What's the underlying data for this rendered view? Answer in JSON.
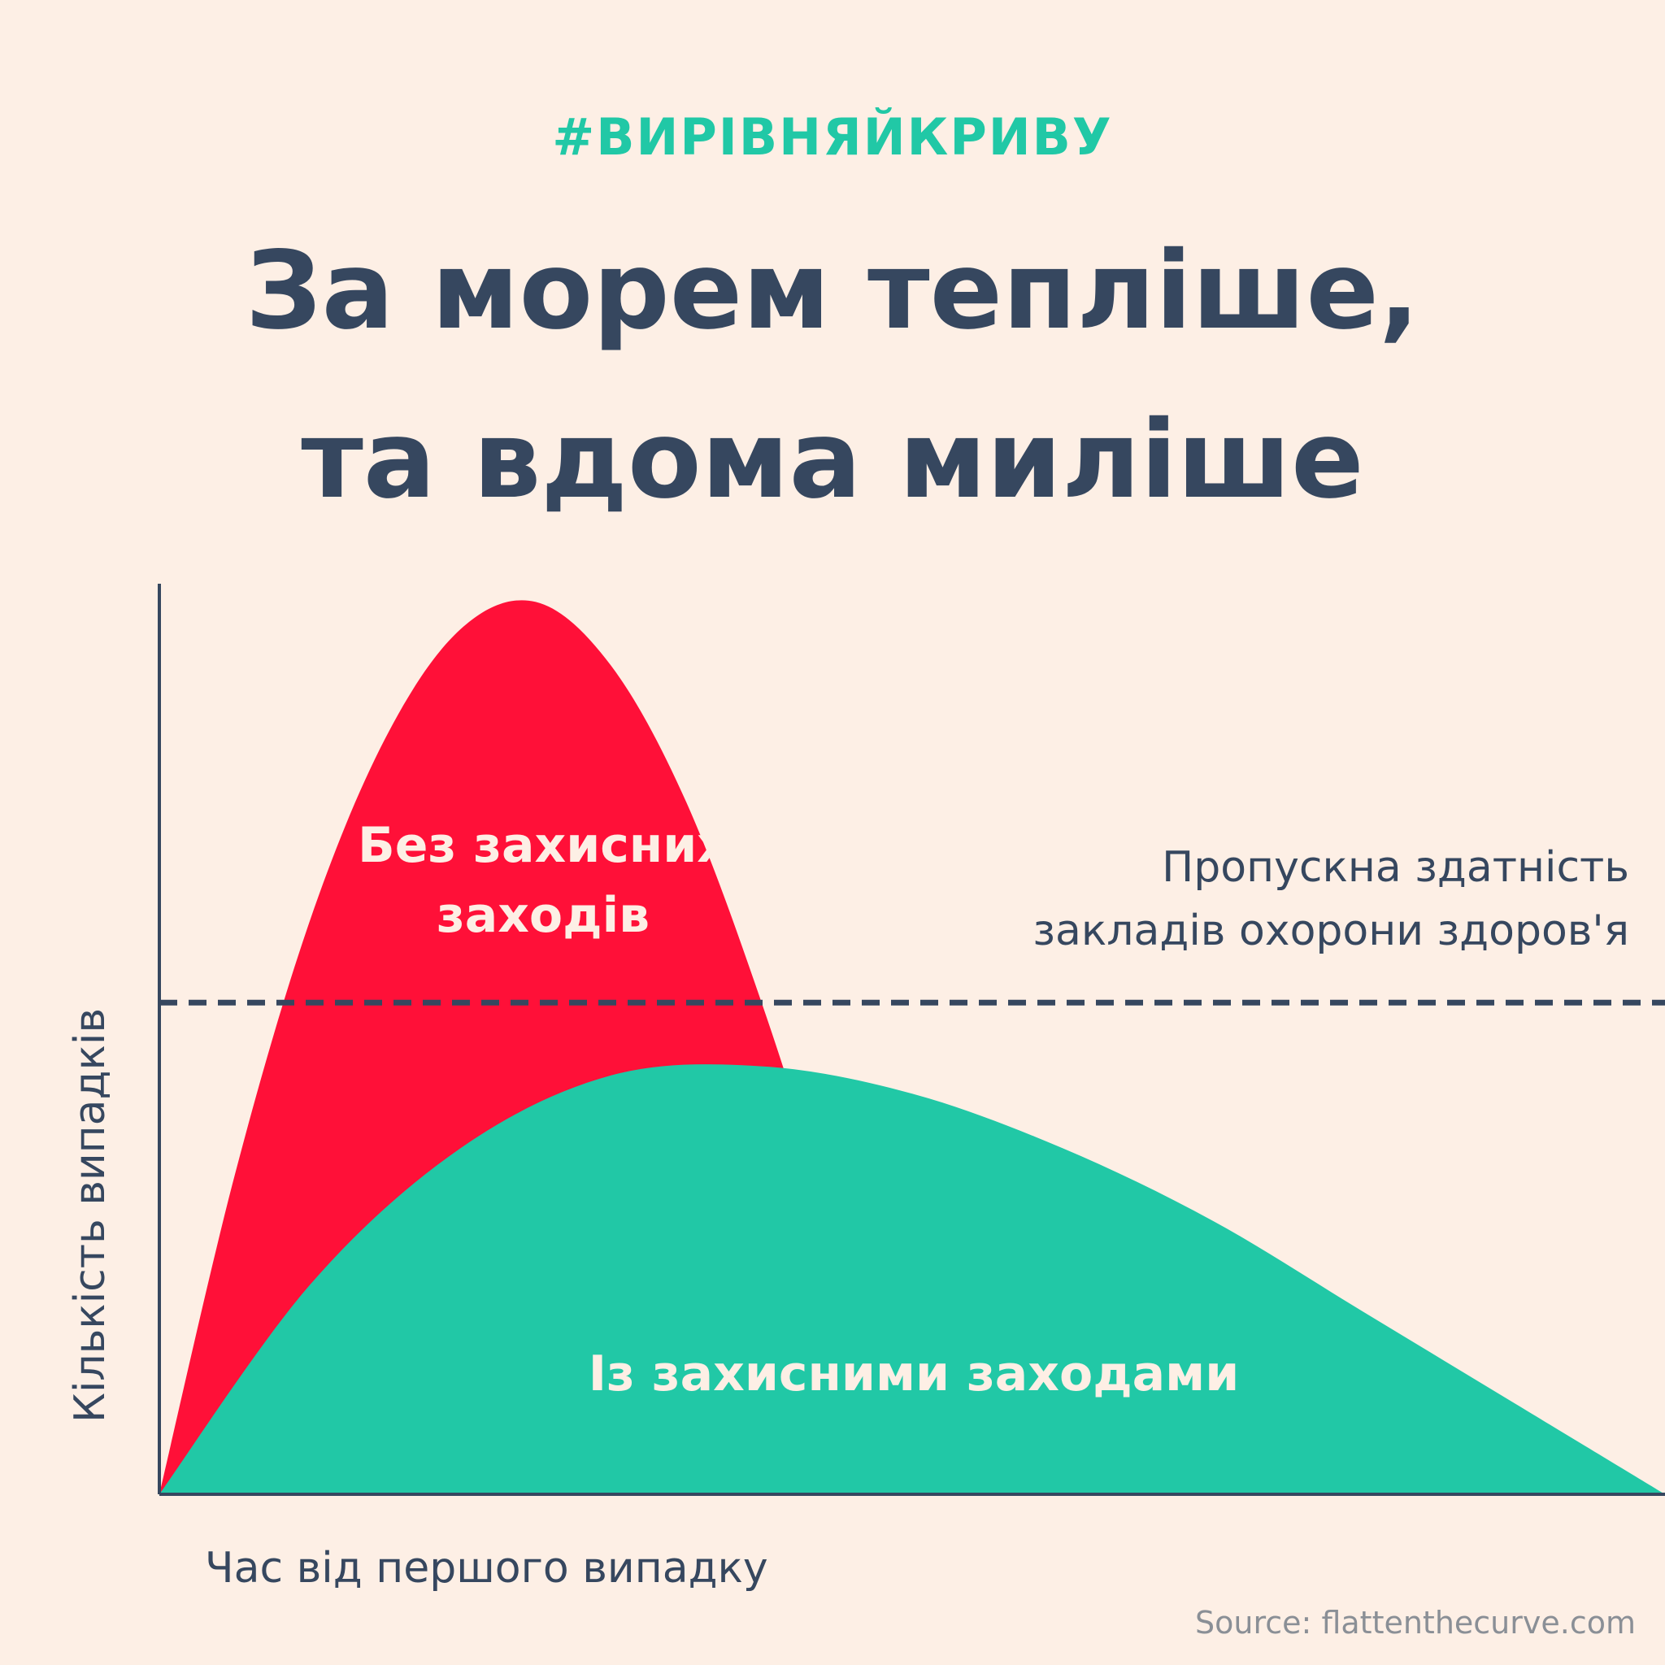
{
  "header": {
    "hashtag": "#ВИРІВНЯЙКРИВУ",
    "title_line1": "За морем тепліше,",
    "title_line2": "та вдома миліше"
  },
  "chart_data": {
    "type": "area",
    "title": "За морем тепліше, та вдома миліше",
    "xlabel": "Час від першого випадку",
    "ylabel": "Кількість випадків",
    "xlim": [
      0,
      100
    ],
    "ylim": [
      0,
      100
    ],
    "grid": false,
    "series": [
      {
        "name": "Без захисних заходів",
        "color": "#ff1038",
        "x": [
          0,
          5,
          10,
          15,
          20,
          25,
          30,
          35,
          40,
          45,
          50
        ],
        "y": [
          0,
          35,
          63,
          83,
          95,
          98,
          91,
          76,
          54,
          28,
          0
        ]
      },
      {
        "name": "Із захисними заходами",
        "color": "#21c8a6",
        "x": [
          0,
          10,
          20,
          30,
          40,
          50,
          60,
          70,
          80,
          90,
          100
        ],
        "y": [
          0,
          23,
          38,
          46,
          47,
          44,
          38,
          30,
          20,
          10,
          0
        ]
      }
    ],
    "threshold": {
      "label_line1": "Пропускна здатність",
      "label_line2": "закладів охорони здоров'я",
      "value": 54,
      "style": "dashed",
      "color": "#36475f"
    },
    "annotations": [
      {
        "text_line1": "Без захисних",
        "text_line2": "заходів",
        "color": "#fdefe5"
      },
      {
        "text": "Із захисними заходами",
        "color": "#fdefe5"
      }
    ]
  },
  "source": "Source: flattenthecurve.com"
}
